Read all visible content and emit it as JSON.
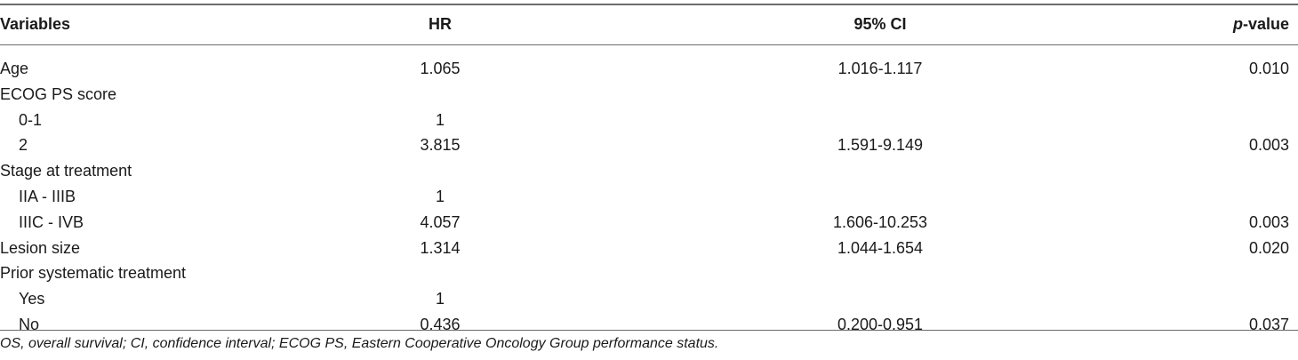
{
  "header": {
    "variables": "Variables",
    "hr": "HR",
    "ci": "95% CI",
    "p_italic": "p",
    "p_rest": "-value"
  },
  "rows": [
    {
      "variable": "Age",
      "indent": false,
      "hr": "1.065",
      "ci": "1.016-1.117",
      "p": "0.010"
    },
    {
      "variable": "ECOG PS score",
      "indent": false,
      "hr": "",
      "ci": "",
      "p": ""
    },
    {
      "variable": "0-1",
      "indent": true,
      "hr": "1",
      "ci": "",
      "p": ""
    },
    {
      "variable": "2",
      "indent": true,
      "hr": "3.815",
      "ci": "1.591-9.149",
      "p": "0.003"
    },
    {
      "variable": "Stage at treatment",
      "indent": false,
      "hr": "",
      "ci": "",
      "p": ""
    },
    {
      "variable": "IIA - IIIB",
      "indent": true,
      "hr": "1",
      "ci": "",
      "p": ""
    },
    {
      "variable": "IIIC - IVB",
      "indent": true,
      "hr": "4.057",
      "ci": "1.606-10.253",
      "p": "0.003"
    },
    {
      "variable": "Lesion size",
      "indent": false,
      "hr": "1.314",
      "ci": "1.044-1.654",
      "p": "0.020"
    },
    {
      "variable": "Prior systematic treatment",
      "indent": false,
      "hr": "",
      "ci": "",
      "p": ""
    },
    {
      "variable": "Yes",
      "indent": true,
      "hr": "1",
      "ci": "",
      "p": ""
    },
    {
      "variable": "No",
      "indent": true,
      "hr": "0.436",
      "ci": "0.200-0.951",
      "p": "0.037"
    }
  ],
  "footnote": "OS, overall survival; CI, confidence interval; ECOG PS, Eastern Cooperative Oncology Group performance status."
}
